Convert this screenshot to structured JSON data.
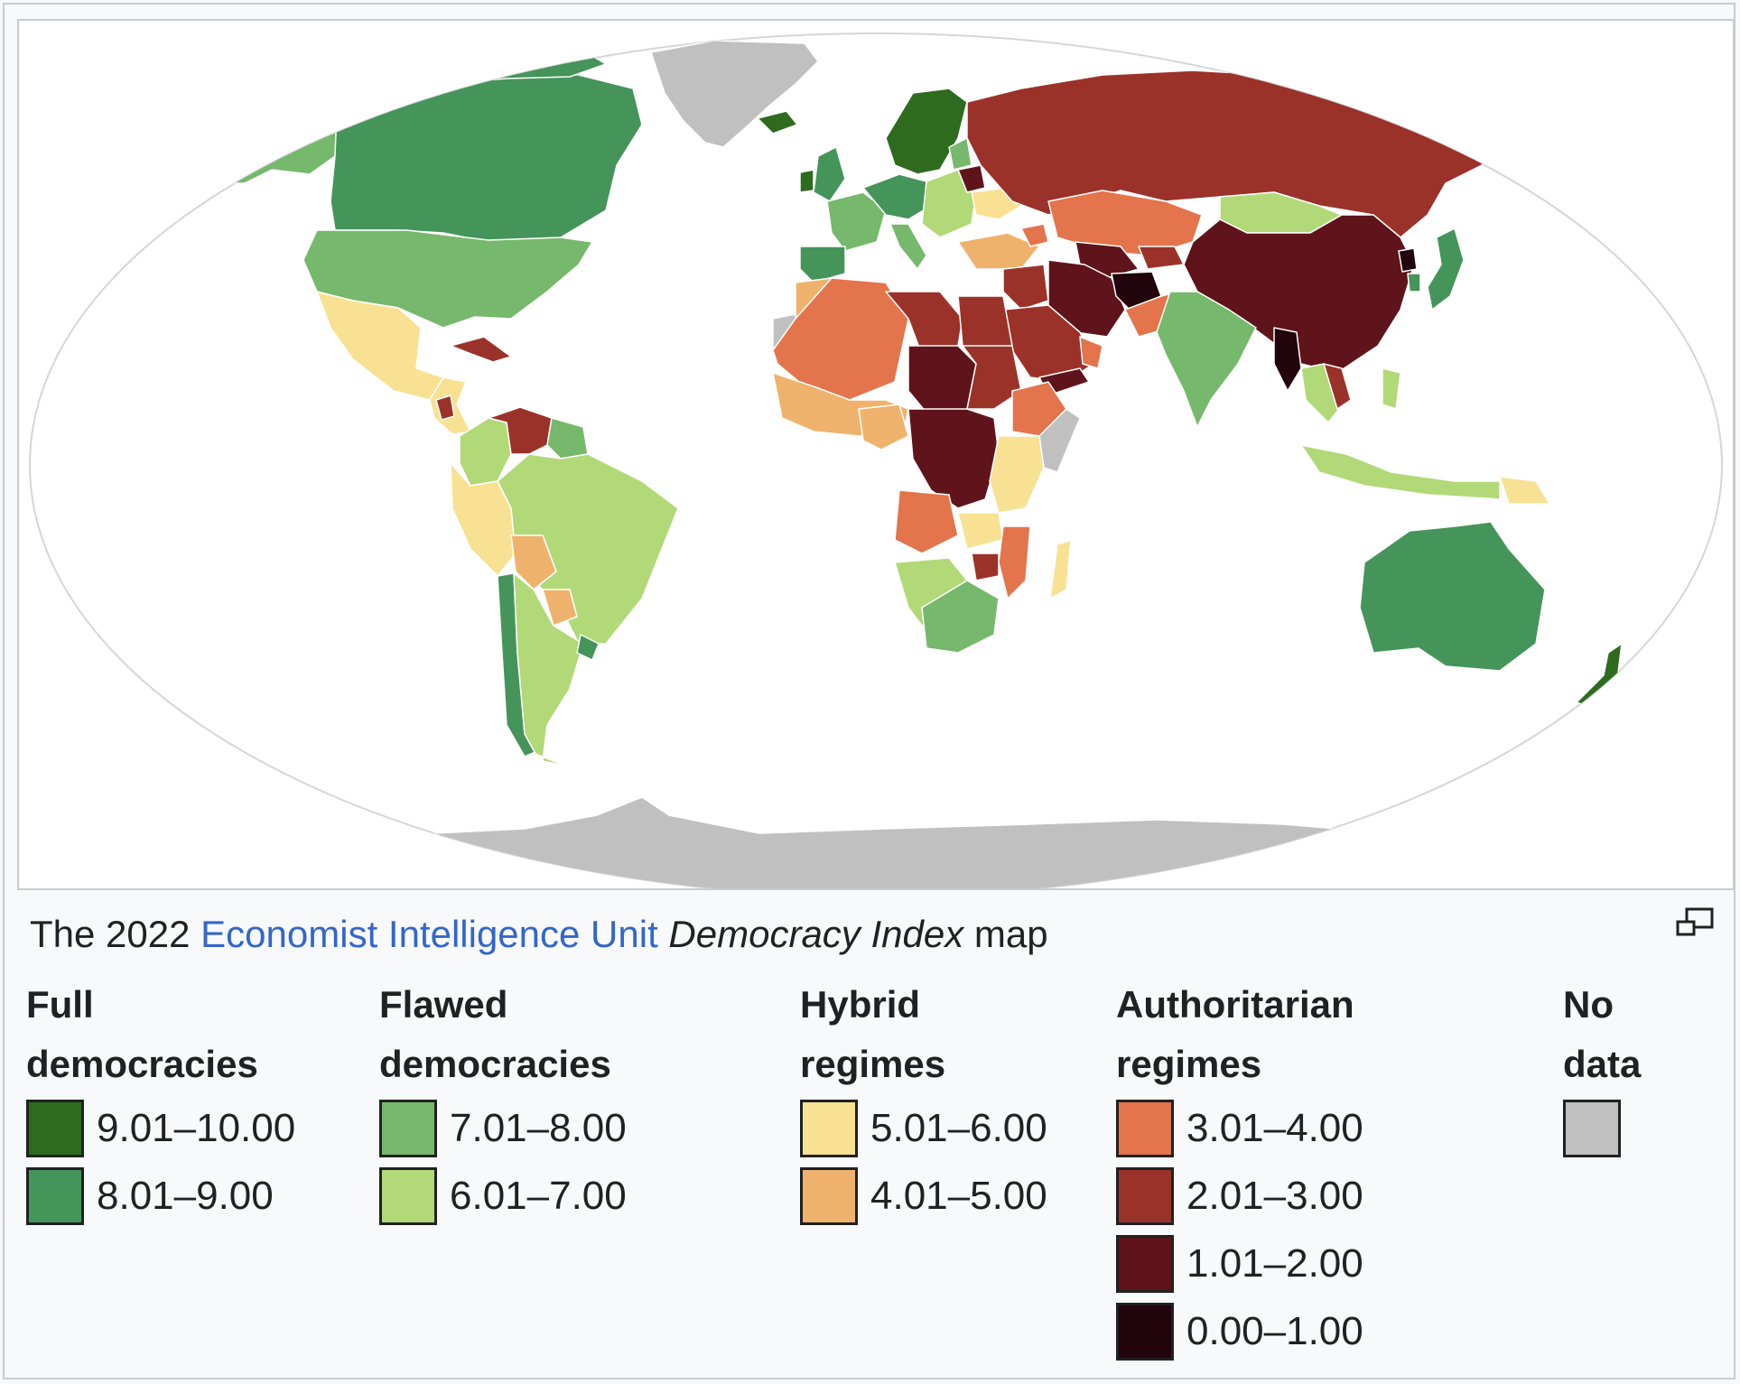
{
  "caption": {
    "prefix": "The 2022 ",
    "link_text": "Economist Intelligence Unit",
    "italic_title": "Democracy Index",
    "suffix": " map"
  },
  "enlarge_icon": "enlarge-icon",
  "legend": {
    "groups": [
      {
        "title_line1": "Full",
        "title_line2": "democracies",
        "items": [
          {
            "label": "9.01–10.00",
            "color": "#2e6b1f"
          },
          {
            "label": "8.01–9.00",
            "color": "#45945a"
          }
        ]
      },
      {
        "title_line1": "Flawed",
        "title_line2": "democracies",
        "items": [
          {
            "label": "7.01–8.00",
            "color": "#76b86c"
          },
          {
            "label": "6.01–7.00",
            "color": "#b1d977"
          }
        ]
      },
      {
        "title_line1": "Hybrid",
        "title_line2": "regimes",
        "items": [
          {
            "label": "5.01–6.00",
            "color": "#f8e192"
          },
          {
            "label": "4.01–5.00",
            "color": "#efb26d"
          }
        ]
      },
      {
        "title_line1": "Authoritarian",
        "title_line2": "regimes",
        "items": [
          {
            "label": "3.01–4.00",
            "color": "#e3744c"
          },
          {
            "label": "2.01–3.00",
            "color": "#9b322a"
          },
          {
            "label": "1.01–2.00",
            "color": "#5e141a"
          },
          {
            "label": "0.00–1.00",
            "color": "#22040c"
          }
        ]
      },
      {
        "title_line1": "No",
        "title_line2": "data",
        "items": [
          {
            "label": "",
            "color": "#c0c0c0"
          }
        ]
      }
    ]
  }
}
